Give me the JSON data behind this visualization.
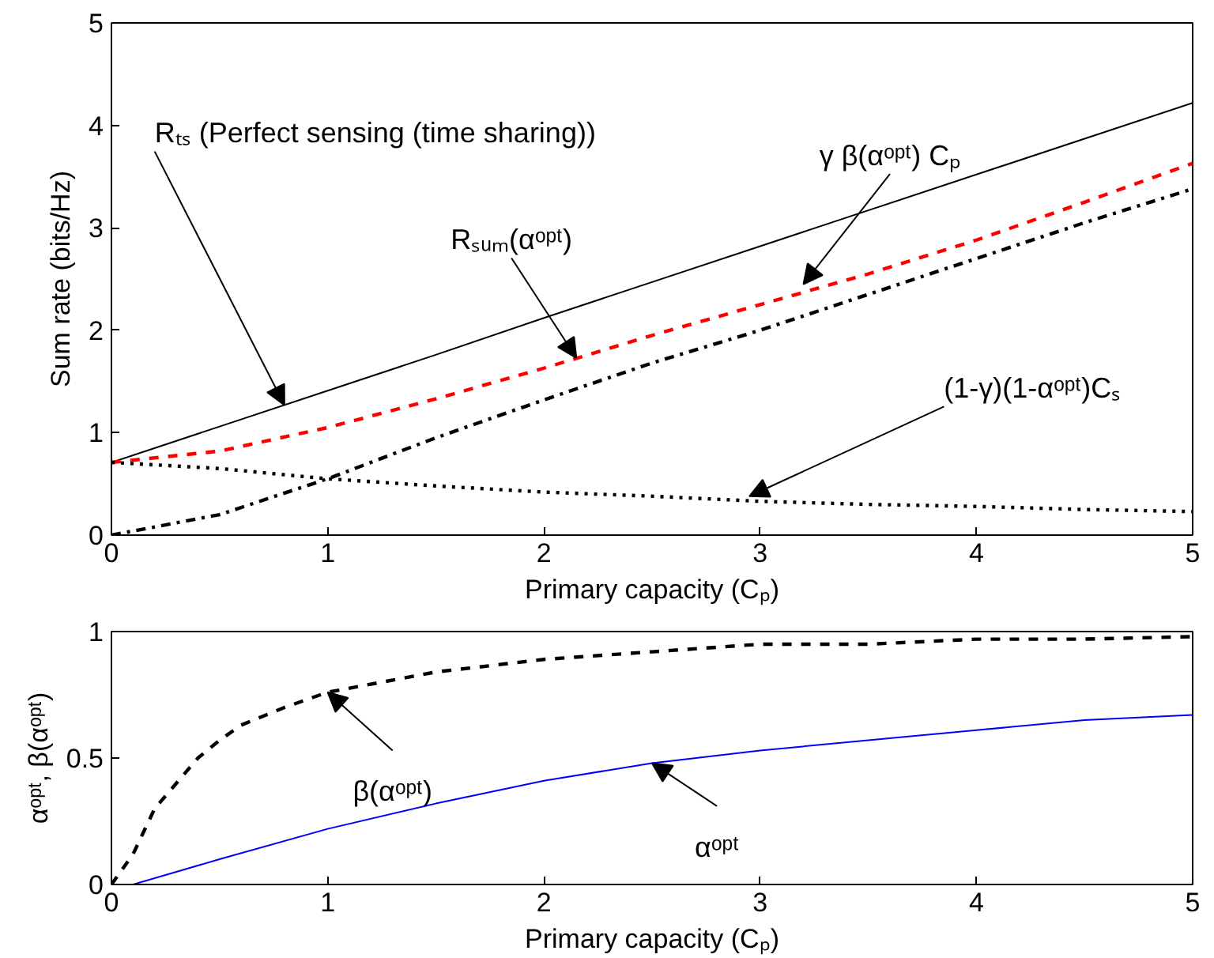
{
  "chart_data": [
    {
      "type": "line",
      "xlabel": "Primary capacity (Cₚ)",
      "ylabel": "Sum rate (bits/Hz)",
      "xlim": [
        0,
        5
      ],
      "ylim": [
        0,
        5
      ],
      "xticks": [
        0,
        1,
        2,
        3,
        4,
        5
      ],
      "yticks": [
        0,
        1,
        2,
        3,
        4,
        5
      ],
      "grid": false,
      "x": [
        0,
        0.5,
        1,
        1.5,
        2,
        2.5,
        3,
        3.5,
        4,
        4.5,
        5
      ],
      "series": [
        {
          "color": "#000000",
          "line_style": "solid",
          "values": [
            0.71,
            1.06,
            1.41,
            1.76,
            2.12,
            2.47,
            2.82,
            3.17,
            3.52,
            3.87,
            4.22
          ]
        },
        {
          "color": "#ff0000",
          "line_style": "dashed",
          "values": [
            0.71,
            0.82,
            1.05,
            1.33,
            1.63,
            1.95,
            2.25,
            2.55,
            2.88,
            3.25,
            3.63
          ]
        },
        {
          "color": "#000000",
          "line_style": "dashdot",
          "values": [
            0,
            0.2,
            0.55,
            0.95,
            1.32,
            1.68,
            2.0,
            2.35,
            2.7,
            3.05,
            3.38
          ]
        },
        {
          "color": "#000000",
          "line_style": "dotted",
          "values": [
            0.71,
            0.65,
            0.55,
            0.48,
            0.42,
            0.38,
            0.33,
            0.3,
            0.28,
            0.25,
            0.23
          ]
        }
      ],
      "annotations": [
        {
          "text": "Rₜₛ (Perfect sensing (time sharing))",
          "x": 0.8,
          "y": 1.27
        },
        {
          "text": "Rₛᵤₘ(αᵒᵖᵗ)",
          "x": 2.15,
          "y": 1.73
        },
        {
          "text": "γ β(αᵒᵖᵗ) Cₚ",
          "x": 3.2,
          "y": 2.45
        },
        {
          "text": "(1-γ)(1-αᵒᵖᵗ)Cₛ",
          "x": 2.95,
          "y": 0.38
        }
      ]
    },
    {
      "type": "line",
      "xlabel": "Primary capacity (Cₚ)",
      "ylabel": "αᵒᵖᵗ, β(αᵒᵖᵗ)",
      "xlim": [
        0,
        5
      ],
      "ylim": [
        0,
        1
      ],
      "xticks": [
        0,
        1,
        2,
        3,
        4,
        5
      ],
      "yticks": [
        0,
        0.5,
        1
      ],
      "grid": false,
      "series": [
        {
          "color": "#000000",
          "line_style": "dashed",
          "x": [
            0,
            0.1,
            0.2,
            0.3,
            0.4,
            0.5,
            0.6,
            0.8,
            1,
            1.5,
            2,
            2.5,
            3,
            3.5,
            4,
            4.5,
            5
          ],
          "values": [
            0,
            0.12,
            0.3,
            0.4,
            0.5,
            0.57,
            0.63,
            0.7,
            0.76,
            0.84,
            0.89,
            0.92,
            0.95,
            0.95,
            0.97,
            0.97,
            0.98
          ]
        },
        {
          "color": "#0000ff",
          "line_style": "solid",
          "x": [
            0,
            0.1,
            0.3,
            0.5,
            1,
            1.5,
            2,
            2.5,
            3,
            3.5,
            4,
            4.5,
            5
          ],
          "values": [
            0,
            0,
            0.05,
            0.1,
            0.22,
            0.32,
            0.41,
            0.48,
            0.53,
            0.57,
            0.61,
            0.65,
            0.67
          ]
        }
      ],
      "annotations": [
        {
          "text": "β(αᵒᵖᵗ)",
          "x": 1.0,
          "y": 0.76
        },
        {
          "text": "αᵒᵖᵗ",
          "x": 2.5,
          "y": 0.48
        }
      ]
    }
  ]
}
